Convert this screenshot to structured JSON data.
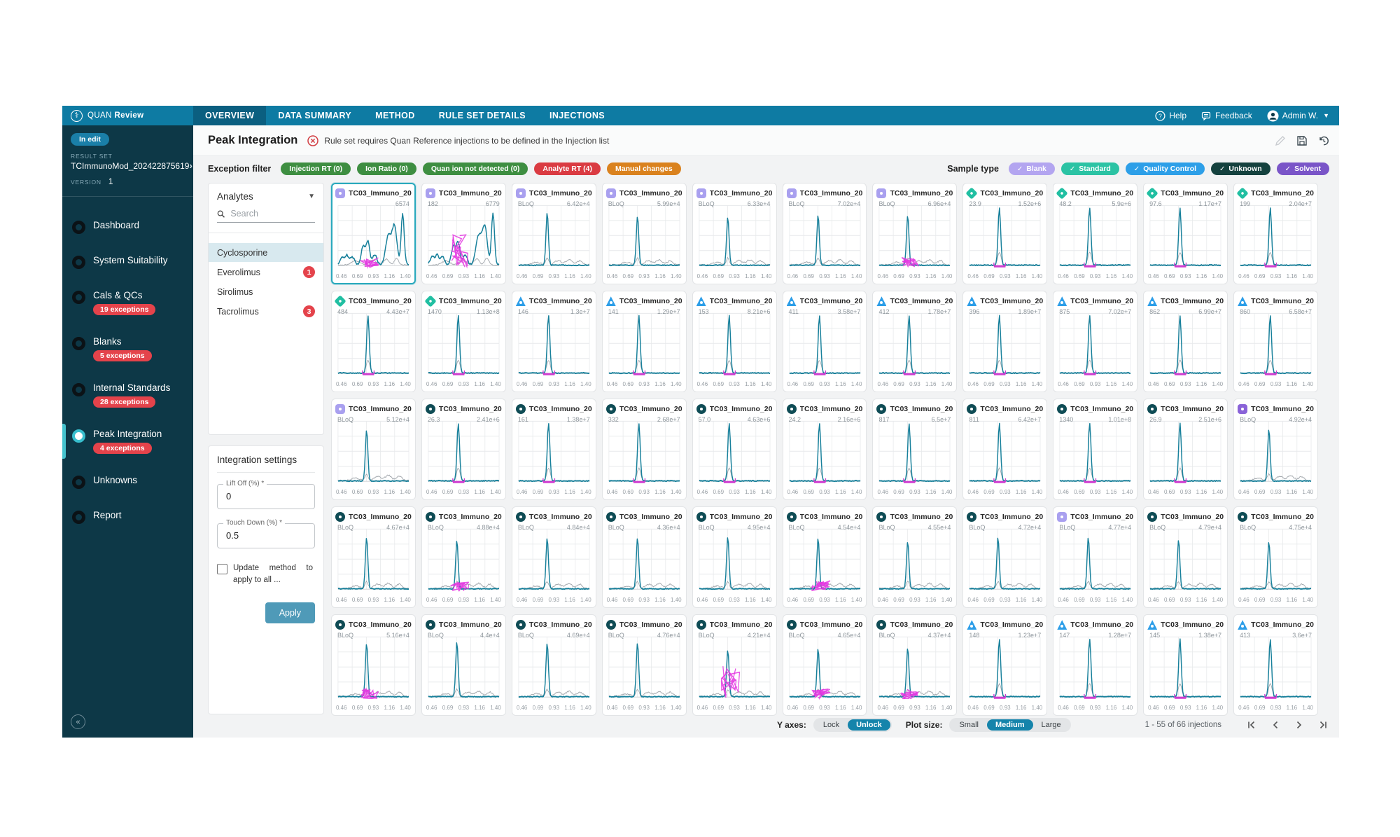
{
  "nav": {
    "brand_quan": "QUAN",
    "brand_review": "Review",
    "tabs": [
      {
        "label": "OVERVIEW",
        "active": true
      },
      {
        "label": "DATA SUMMARY",
        "active": false
      },
      {
        "label": "METHOD",
        "active": false
      },
      {
        "label": "RULE SET DETAILS",
        "active": false
      },
      {
        "label": "INJECTIONS",
        "active": false
      }
    ],
    "help": "Help",
    "feedback": "Feedback",
    "user": "Admin W."
  },
  "sidebar": {
    "in_edit": "In edit",
    "result_set_label": "RESULT SET",
    "result_set": "TCImmunoMod_202422875619",
    "version_label": "VERSION",
    "version": "1",
    "items": [
      {
        "label": "Dashboard",
        "badge": "",
        "active": false
      },
      {
        "label": "System Suitability",
        "badge": "",
        "active": false
      },
      {
        "label": "Cals & QCs",
        "badge": "19 exceptions",
        "active": false
      },
      {
        "label": "Blanks",
        "badge": "5 exceptions",
        "active": false
      },
      {
        "label": "Internal Standards",
        "badge": "28 exceptions",
        "active": false
      },
      {
        "label": "Peak Integration",
        "badge": "4 exceptions",
        "active": true
      },
      {
        "label": "Unknowns",
        "badge": "",
        "active": false
      },
      {
        "label": "Report",
        "badge": "",
        "active": false
      }
    ]
  },
  "header": {
    "title": "Peak Integration",
    "error": "Rule set requires Quan Reference injections to be defined in the Injection list"
  },
  "filters": {
    "exception_label": "Exception filter",
    "exception_chips": [
      {
        "label": "Injection RT (0)",
        "color": "#3e8e41"
      },
      {
        "label": "Ion Ratio (0)",
        "color": "#3e8e41"
      },
      {
        "label": "Quan ion not detected (0)",
        "color": "#3e8e41"
      },
      {
        "label": "Analyte RT (4)",
        "color": "#da3b42"
      },
      {
        "label": "Manual changes",
        "color": "#da821e"
      }
    ],
    "sample_label": "Sample type",
    "sample_chips": [
      {
        "label": "Blank",
        "color": "#b3a5f0"
      },
      {
        "label": "Standard",
        "color": "#2bc3a4"
      },
      {
        "label": "Quality Control",
        "color": "#2d9fe8"
      },
      {
        "label": "Unknown",
        "color": "#14413e"
      },
      {
        "label": "Solvent",
        "color": "#7a55c8"
      }
    ]
  },
  "analytes": {
    "title": "Analytes",
    "search_placeholder": "Search",
    "items": [
      {
        "name": "Cyclosporine",
        "badge": "",
        "selected": true
      },
      {
        "name": "Everolimus",
        "badge": "1",
        "selected": false
      },
      {
        "name": "Sirolimus",
        "badge": "",
        "selected": false
      },
      {
        "name": "Tacrolimus",
        "badge": "3",
        "selected": false
      }
    ]
  },
  "integration": {
    "title": "Integration settings",
    "lift_off_label": "Lift Off (%) *",
    "lift_off_value": "0",
    "touch_down_label": "Touch Down (%) *",
    "touch_down_value": "0.5",
    "checkbox_label": "Update method to apply to all ...",
    "apply_label": "Apply"
  },
  "grid": {
    "card_title": "TC03_Immuno_20...",
    "x_ticks": [
      "0.46",
      "0.69",
      "0.93",
      "1.16",
      "1.40"
    ],
    "cards": [
      {
        "t": "blank",
        "l": "",
        "r": "6574",
        "v": "noisy",
        "p": 1,
        "sel": true
      },
      {
        "t": "blank",
        "l": "182",
        "r": "6779",
        "v": "noisy",
        "p": 2,
        "sel": false
      },
      {
        "t": "blank",
        "l": "BLoQ",
        "r": "6.42e+4",
        "v": "bloq",
        "p": 0,
        "sel": false
      },
      {
        "t": "blank",
        "l": "BLoQ",
        "r": "5.99e+4",
        "v": "bloq",
        "p": 0,
        "sel": false
      },
      {
        "t": "blank",
        "l": "BLoQ",
        "r": "6.33e+4",
        "v": "bloq",
        "p": 0,
        "sel": false
      },
      {
        "t": "blank",
        "l": "BLoQ",
        "r": "7.02e+4",
        "v": "bloq",
        "p": 0,
        "sel": false
      },
      {
        "t": "blank",
        "l": "BLoQ",
        "r": "6.96e+4",
        "v": "bloq",
        "p": 1,
        "sel": false
      },
      {
        "t": "standard",
        "l": "23.9",
        "r": "1.52e+6",
        "v": "peak",
        "p": 0,
        "sel": false
      },
      {
        "t": "standard",
        "l": "48.2",
        "r": "5.9e+6",
        "v": "peak",
        "p": 0,
        "sel": false
      },
      {
        "t": "standard",
        "l": "97.6",
        "r": "1.17e+7",
        "v": "peak",
        "p": 0,
        "sel": false
      },
      {
        "t": "standard",
        "l": "199",
        "r": "2.04e+7",
        "v": "peak",
        "p": 0,
        "sel": false
      },
      {
        "t": "standard",
        "l": "484",
        "r": "4.43e+7",
        "v": "peak",
        "p": 0,
        "sel": false
      },
      {
        "t": "standard",
        "l": "1470",
        "r": "1.13e+8",
        "v": "peak",
        "p": 0,
        "sel": false
      },
      {
        "t": "qc",
        "l": "146",
        "r": "1.3e+7",
        "v": "peak",
        "p": 0,
        "sel": false
      },
      {
        "t": "qc",
        "l": "141",
        "r": "1.29e+7",
        "v": "peak",
        "p": 0,
        "sel": false
      },
      {
        "t": "qc",
        "l": "153",
        "r": "8.21e+6",
        "v": "peak",
        "p": 0,
        "sel": false
      },
      {
        "t": "qc",
        "l": "411",
        "r": "3.58e+7",
        "v": "peak",
        "p": 0,
        "sel": false
      },
      {
        "t": "qc",
        "l": "412",
        "r": "1.78e+7",
        "v": "peak",
        "p": 0,
        "sel": false
      },
      {
        "t": "qc",
        "l": "396",
        "r": "1.89e+7",
        "v": "peak",
        "p": 0,
        "sel": false
      },
      {
        "t": "qc",
        "l": "875",
        "r": "7.02e+7",
        "v": "peak",
        "p": 0,
        "sel": false
      },
      {
        "t": "qc",
        "l": "862",
        "r": "6.99e+7",
        "v": "peak",
        "p": 0,
        "sel": false
      },
      {
        "t": "qc",
        "l": "860",
        "r": "6.58e+7",
        "v": "peak",
        "p": 0,
        "sel": false
      },
      {
        "t": "blank",
        "l": "BLoQ",
        "r": "5.12e+4",
        "v": "bloq",
        "p": 0,
        "sel": false
      },
      {
        "t": "unknown",
        "l": "26.3",
        "r": "2.41e+6",
        "v": "peak",
        "p": 0,
        "sel": false
      },
      {
        "t": "unknown",
        "l": "161",
        "r": "1.38e+7",
        "v": "peak",
        "p": 0,
        "sel": false
      },
      {
        "t": "unknown",
        "l": "332",
        "r": "2.68e+7",
        "v": "peak",
        "p": 0,
        "sel": false
      },
      {
        "t": "unknown",
        "l": "57.0",
        "r": "4.63e+6",
        "v": "peak",
        "p": 0,
        "sel": false
      },
      {
        "t": "unknown",
        "l": "24.2",
        "r": "2.16e+6",
        "v": "peak",
        "p": 0,
        "sel": false
      },
      {
        "t": "unknown",
        "l": "817",
        "r": "6.5e+7",
        "v": "peak",
        "p": 0,
        "sel": false
      },
      {
        "t": "unknown",
        "l": "811",
        "r": "6.42e+7",
        "v": "peak",
        "p": 0,
        "sel": false
      },
      {
        "t": "unknown",
        "l": "1340",
        "r": "1.01e+8",
        "v": "peak",
        "p": 0,
        "sel": false
      },
      {
        "t": "unknown",
        "l": "26.9",
        "r": "2.51e+6",
        "v": "peak",
        "p": 0,
        "sel": false
      },
      {
        "t": "solvent",
        "l": "BLoQ",
        "r": "4.92e+4",
        "v": "bloq",
        "p": 0,
        "sel": false
      },
      {
        "t": "unknown",
        "l": "BLoQ",
        "r": "4.67e+4",
        "v": "bloq",
        "p": 0,
        "sel": false
      },
      {
        "t": "unknown",
        "l": "BLoQ",
        "r": "4.88e+4",
        "v": "bloq",
        "p": 1,
        "sel": false
      },
      {
        "t": "unknown",
        "l": "BLoQ",
        "r": "4.84e+4",
        "v": "bloq",
        "p": 0,
        "sel": false
      },
      {
        "t": "unknown",
        "l": "BLoQ",
        "r": "4.36e+4",
        "v": "bloq",
        "p": 0,
        "sel": false
      },
      {
        "t": "unknown",
        "l": "BLoQ",
        "r": "4.95e+4",
        "v": "bloq",
        "p": 0,
        "sel": false
      },
      {
        "t": "unknown",
        "l": "BLoQ",
        "r": "4.54e+4",
        "v": "bloq",
        "p": 1,
        "sel": false
      },
      {
        "t": "unknown",
        "l": "BLoQ",
        "r": "4.55e+4",
        "v": "bloq",
        "p": 0,
        "sel": false
      },
      {
        "t": "unknown",
        "l": "BLoQ",
        "r": "4.72e+4",
        "v": "bloq",
        "p": 0,
        "sel": false
      },
      {
        "t": "blank",
        "l": "BLoQ",
        "r": "4.77e+4",
        "v": "bloq",
        "p": 0,
        "sel": false
      },
      {
        "t": "unknown",
        "l": "BLoQ",
        "r": "4.79e+4",
        "v": "bloq",
        "p": 0,
        "sel": false
      },
      {
        "t": "unknown",
        "l": "BLoQ",
        "r": "4.75e+4",
        "v": "bloq",
        "p": 0,
        "sel": false
      },
      {
        "t": "unknown",
        "l": "BLoQ",
        "r": "5.16e+4",
        "v": "bloq",
        "p": 1,
        "sel": false
      },
      {
        "t": "unknown",
        "l": "BLoQ",
        "r": "4.4e+4",
        "v": "bloq",
        "p": 0,
        "sel": false
      },
      {
        "t": "unknown",
        "l": "BLoQ",
        "r": "4.69e+4",
        "v": "bloq",
        "p": 0,
        "sel": false
      },
      {
        "t": "unknown",
        "l": "BLoQ",
        "r": "4.76e+4",
        "v": "bloq",
        "p": 0,
        "sel": false
      },
      {
        "t": "unknown",
        "l": "BLoQ",
        "r": "4.21e+4",
        "v": "bloq",
        "p": 2,
        "sel": false
      },
      {
        "t": "unknown",
        "l": "BLoQ",
        "r": "4.65e+4",
        "v": "bloq",
        "p": 1,
        "sel": false
      },
      {
        "t": "unknown",
        "l": "BLoQ",
        "r": "4.37e+4",
        "v": "bloq",
        "p": 1,
        "sel": false
      },
      {
        "t": "qc",
        "l": "148",
        "r": "1.23e+7",
        "v": "peak",
        "p": 0,
        "sel": false
      },
      {
        "t": "qc",
        "l": "147",
        "r": "1.28e+7",
        "v": "peak",
        "p": 0,
        "sel": false
      },
      {
        "t": "qc",
        "l": "145",
        "r": "1.38e+7",
        "v": "peak",
        "p": 0,
        "sel": false
      },
      {
        "t": "qc",
        "l": "413",
        "r": "3.6e+7",
        "v": "peak",
        "p": 0,
        "sel": false
      }
    ]
  },
  "footer": {
    "y_axes_label": "Y axes:",
    "lock": "Lock",
    "unlock": "Unlock",
    "plot_size_label": "Plot size:",
    "small": "Small",
    "medium": "Medium",
    "large": "Large",
    "range": "1 - 55 of 66 injections"
  },
  "colors": {
    "topbar": "#0e7ba3",
    "sidebar": "#0d3847",
    "accent": "#1584ab",
    "exception_red": "#e4434b",
    "trace": "#17809b",
    "manual_pink": "#e336e0"
  }
}
